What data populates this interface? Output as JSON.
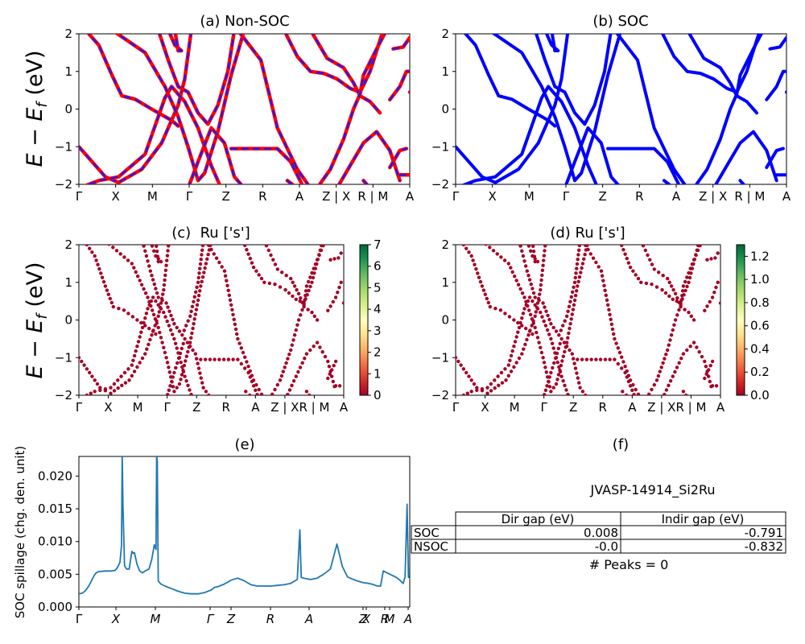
{
  "figure": {
    "shared_ylabel_html": "E − E_f (eV)"
  },
  "chart_data": [
    {
      "panel": "a",
      "type": "line",
      "title": "(a) Non-SOC",
      "ylabel": "E − E_f (eV)",
      "ylim": [
        -2,
        2
      ],
      "yticks": [
        "−2",
        "−1",
        "0",
        "1",
        "2"
      ],
      "kpath_labels": [
        "Γ",
        "X",
        "M",
        "Γ",
        "Z",
        "R",
        "A",
        "Z | X",
        "R | M",
        "A"
      ],
      "series_colors": [
        "#ff0000",
        "#1a1aff"
      ],
      "series_note": "spin-up solid red, spin-down dashed blue (overlapping)",
      "bands": "band-structure lines (approximate digitization)"
    },
    {
      "panel": "b",
      "type": "line",
      "title": "(b) SOC",
      "ylim": [
        -2,
        2
      ],
      "yticks": [
        "−2",
        "−1",
        "0",
        "1",
        "2"
      ],
      "kpath_labels": [
        "Γ",
        "X",
        "M",
        "Γ",
        "Z",
        "R",
        "A",
        "Z | X",
        "R | M",
        "A"
      ],
      "series_colors": [
        "#0000ff"
      ]
    },
    {
      "panel": "c",
      "type": "scatter",
      "title": "(c)  Ru ['s']",
      "ylabel": "E − E_f (eV)",
      "ylim": [
        -2,
        2
      ],
      "yticks": [
        "−2",
        "−1",
        "0",
        "1",
        "2"
      ],
      "kpath_labels": [
        "Γ",
        "X",
        "M",
        "Γ",
        "Z",
        "R",
        "A",
        "Z | X",
        "R | M",
        "A"
      ],
      "colorbar": {
        "cmap": "RdYlGn",
        "min": 0,
        "max": 7,
        "ticks": [
          "0",
          "1",
          "2",
          "3",
          "4",
          "5",
          "6",
          "7"
        ]
      },
      "point_color": "#a50026"
    },
    {
      "panel": "d",
      "type": "scatter",
      "title": "(d) Ru ['s']",
      "ylim": [
        -2,
        2
      ],
      "yticks": [
        "−2",
        "−1",
        "0",
        "1",
        "2"
      ],
      "kpath_labels": [
        "Γ",
        "X",
        "M",
        "Γ",
        "Z",
        "R",
        "A",
        "Z | X",
        "R | M",
        "A"
      ],
      "colorbar": {
        "cmap": "RdYlGn",
        "min": 0,
        "max": 1.3,
        "ticks": [
          "0.0",
          "0.2",
          "0.4",
          "0.6",
          "0.8",
          "1.0",
          "1.2"
        ]
      },
      "point_color": "#a50026"
    },
    {
      "panel": "e",
      "type": "line",
      "title": "(e)",
      "ylabel": "SOC spillage (chg. den. unit)",
      "ylim": [
        0,
        0.023
      ],
      "yticks": [
        "0.000",
        "0.005",
        "0.010",
        "0.015",
        "0.020"
      ],
      "kpath_labels": [
        "Γ",
        "X",
        "M",
        "Γ",
        "Z",
        "R",
        "A",
        "Z",
        "X",
        "R",
        "M",
        "A"
      ],
      "line_color": "#1f77b4",
      "x": [
        0,
        0.05,
        0.1,
        0.15,
        0.2,
        0.23,
        0.26,
        0.3,
        0.4,
        0.5,
        0.55,
        0.58,
        0.62,
        0.645,
        0.655,
        0.665,
        0.69,
        0.72,
        0.76,
        0.8,
        0.82,
        0.84,
        0.88,
        0.92,
        0.96,
        1.0,
        1.06,
        1.1,
        1.14,
        1.165,
        1.175,
        1.185,
        1.2,
        1.22,
        1.24,
        1.3,
        1.4,
        1.5,
        1.6,
        1.7,
        1.8,
        1.9,
        2.0,
        2.05,
        2.1,
        2.2,
        2.3,
        2.4,
        2.5,
        2.6,
        2.65,
        2.7,
        2.75,
        2.8,
        2.9,
        3.0,
        3.1,
        3.2,
        3.3,
        3.34,
        3.36,
        3.4,
        3.5,
        3.6,
        3.7,
        3.8,
        3.9,
        3.98,
        4.06,
        4.1,
        4.2,
        4.3,
        4.38,
        4.42,
        4.46,
        4.48,
        4.52,
        4.56,
        4.6,
        4.7,
        4.8,
        4.85,
        4.88,
        4.9,
        4.93,
        4.96,
        4.98,
        5.0
      ],
      "values": [
        0.002,
        0.0021,
        0.0025,
        0.0032,
        0.0042,
        0.0048,
        0.0052,
        0.0054,
        0.0055,
        0.0055,
        0.0056,
        0.006,
        0.0068,
        0.0095,
        0.0235,
        0.0158,
        0.0063,
        0.0058,
        0.0058,
        0.0085,
        0.0082,
        0.0083,
        0.0065,
        0.0055,
        0.0052,
        0.0055,
        0.0058,
        0.0072,
        0.0095,
        0.0088,
        0.0232,
        0.0222,
        0.004,
        0.0037,
        0.0035,
        0.0032,
        0.0028,
        0.0024,
        0.0021,
        0.002,
        0.002,
        0.0022,
        0.0026,
        0.003,
        0.0031,
        0.0035,
        0.0041,
        0.0044,
        0.004,
        0.0034,
        0.0033,
        0.0032,
        0.0032,
        0.0032,
        0.0032,
        0.0033,
        0.0034,
        0.0036,
        0.0042,
        0.0118,
        0.0045,
        0.0044,
        0.0042,
        0.0044,
        0.005,
        0.0058,
        0.0096,
        0.0062,
        0.0046,
        0.0044,
        0.004,
        0.0037,
        0.0036,
        0.0035,
        0.0034,
        0.0033,
        0.0032,
        0.0032,
        0.0055,
        0.005,
        0.0045,
        0.0041,
        0.0038,
        0.0036,
        0.0046,
        0.0157,
        0.0045,
        0.0055
      ]
    },
    {
      "panel": "f",
      "type": "table",
      "title": "(f)",
      "caption": "JVASP-14914_Si2Ru",
      "columns": [
        "Dir gap (eV)",
        "Indir gap (eV)"
      ],
      "rows": [
        {
          "label": "SOC",
          "values": [
            "0.008",
            "-0.791"
          ]
        },
        {
          "label": "NSOC",
          "values": [
            "-0.0",
            "-0.832"
          ]
        }
      ],
      "footer": "# Peaks = 0"
    }
  ]
}
